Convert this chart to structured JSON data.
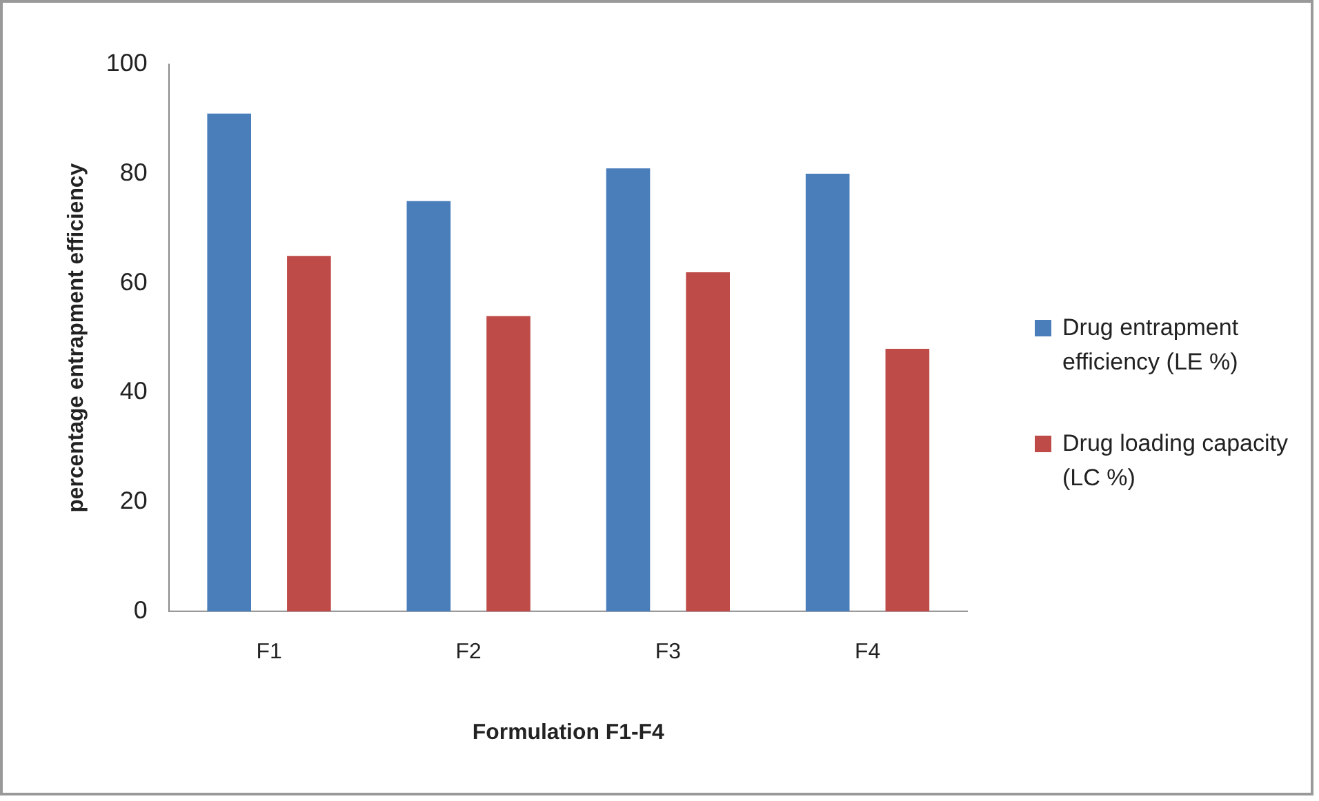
{
  "chart_data": {
    "type": "bar",
    "categories": [
      "F1",
      "F2",
      "F3",
      "F4"
    ],
    "series": [
      {
        "name": "Drug entrapment efficiency (LE %)",
        "color": "#4a7ebb",
        "values": [
          91,
          75,
          81,
          80
        ]
      },
      {
        "name": "Drug loading capacity (LC %)",
        "color": "#be4b48",
        "values": [
          65,
          54,
          62,
          48
        ]
      }
    ],
    "xlabel": "Formulation F1-F4",
    "ylabel": "percentage entrapment efficiency",
    "ylim": [
      0,
      100
    ],
    "yticks": [
      0,
      20,
      40,
      60,
      80,
      100
    ],
    "grid": false,
    "legend": "right"
  }
}
